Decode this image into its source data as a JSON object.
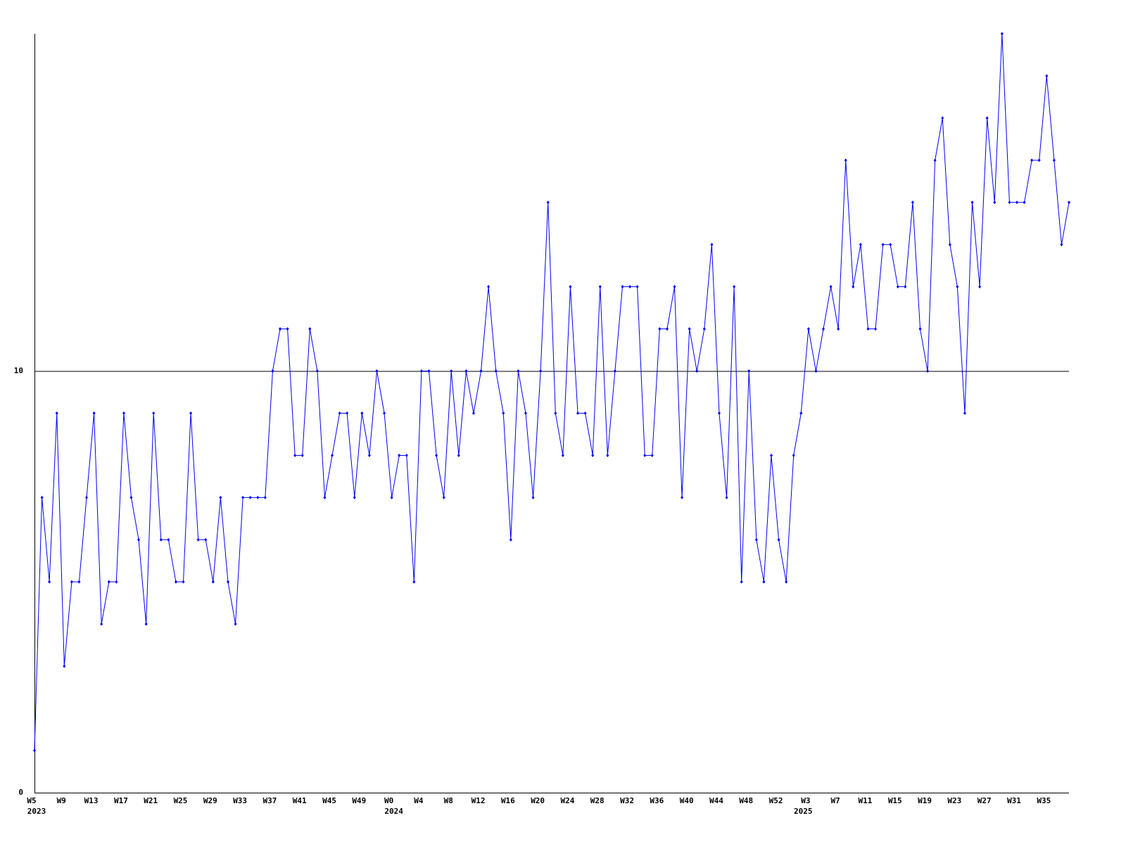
{
  "chart_data": {
    "type": "line",
    "categories": [
      "W5",
      null,
      null,
      null,
      "W9",
      null,
      null,
      null,
      "W13",
      null,
      null,
      null,
      "W17",
      null,
      null,
      null,
      "W21",
      null,
      null,
      null,
      "W25",
      null,
      null,
      null,
      "W29",
      null,
      null,
      null,
      "W33",
      null,
      null,
      null,
      "W37",
      null,
      null,
      null,
      "W41",
      null,
      null,
      null,
      "W45",
      null,
      null,
      null,
      "W49",
      null,
      null,
      null,
      "W0",
      null,
      null,
      null,
      "W4",
      null,
      null,
      null,
      "W8",
      null,
      null,
      null,
      "W12",
      null,
      null,
      null,
      "W16",
      null,
      null,
      null,
      "W20",
      null,
      null,
      null,
      "W24",
      null,
      null,
      null,
      "W28",
      null,
      null,
      null,
      "W32",
      null,
      null,
      null,
      "W36",
      null,
      null,
      null,
      "W40",
      null,
      null,
      null,
      "W44",
      null,
      null,
      null,
      "W48",
      null,
      null,
      null,
      "W52",
      null,
      null,
      null,
      "W3",
      null,
      null,
      null,
      "W7",
      null,
      null,
      null,
      "W11",
      null,
      null,
      null,
      "W15",
      null,
      null,
      null,
      "W19",
      null,
      null,
      null,
      "W23",
      null,
      null,
      null,
      "W27",
      null,
      null,
      null,
      "W31",
      null,
      null,
      null,
      "W35",
      null,
      null,
      null
    ],
    "year_labels": [
      "2023",
      null,
      null,
      null,
      null,
      null,
      null,
      null,
      null,
      null,
      null,
      null,
      null,
      null,
      null,
      null,
      null,
      null,
      null,
      null,
      null,
      null,
      null,
      null,
      null,
      null,
      null,
      null,
      null,
      null,
      null,
      null,
      null,
      null,
      null,
      null,
      null,
      null,
      null,
      null,
      null,
      null,
      null,
      null,
      null,
      null,
      null,
      null,
      "2024",
      null,
      null,
      null,
      null,
      null,
      null,
      null,
      null,
      null,
      null,
      null,
      null,
      null,
      null,
      null,
      null,
      null,
      null,
      null,
      null,
      null,
      null,
      null,
      null,
      null,
      null,
      null,
      null,
      null,
      null,
      null,
      null,
      null,
      null,
      null,
      null,
      null,
      null,
      null,
      null,
      null,
      null,
      null,
      null,
      null,
      null,
      null,
      null,
      null,
      null,
      null,
      null,
      null,
      null,
      "2025",
      null,
      null,
      null,
      null,
      null,
      null,
      null,
      null,
      null,
      null,
      null,
      null,
      null,
      null,
      null,
      null,
      null,
      null,
      null,
      null,
      null,
      null,
      null,
      null,
      null,
      null,
      null,
      null,
      null,
      null,
      null,
      null,
      null,
      null,
      null,
      null,
      null,
      null
    ],
    "values": [
      1,
      7,
      5,
      9,
      3,
      5,
      5,
      7,
      9,
      4,
      5,
      5,
      9,
      7,
      6,
      4,
      9,
      6,
      6,
      5,
      5,
      9,
      6,
      6,
      5,
      7,
      5,
      4,
      7,
      7,
      7,
      7,
      10,
      11,
      11,
      8,
      8,
      11,
      10,
      7,
      8,
      9,
      9,
      7,
      9,
      8,
      10,
      9,
      7,
      8,
      8,
      5,
      10,
      10,
      8,
      7,
      10,
      8,
      10,
      9,
      10,
      12,
      10,
      9,
      6,
      10,
      9,
      7,
      10,
      14,
      9,
      8,
      12,
      9,
      9,
      8,
      12,
      8,
      10,
      12,
      12,
      12,
      8,
      8,
      11,
      11,
      12,
      7,
      11,
      10,
      11,
      13,
      9,
      7,
      12,
      5,
      10,
      6,
      5,
      8,
      6,
      5,
      8,
      9,
      11,
      10,
      11,
      12,
      11,
      15,
      12,
      13,
      11,
      11,
      13,
      13,
      12,
      12,
      14,
      11,
      10,
      15,
      16,
      13,
      12,
      9,
      14,
      12,
      16,
      14,
      18,
      14,
      14,
      14,
      15,
      15,
      17,
      15,
      13,
      14
    ],
    "color": "#0000ff",
    "ylim": [
      0,
      18
    ],
    "yticks": [
      0,
      10
    ],
    "grid": true
  }
}
